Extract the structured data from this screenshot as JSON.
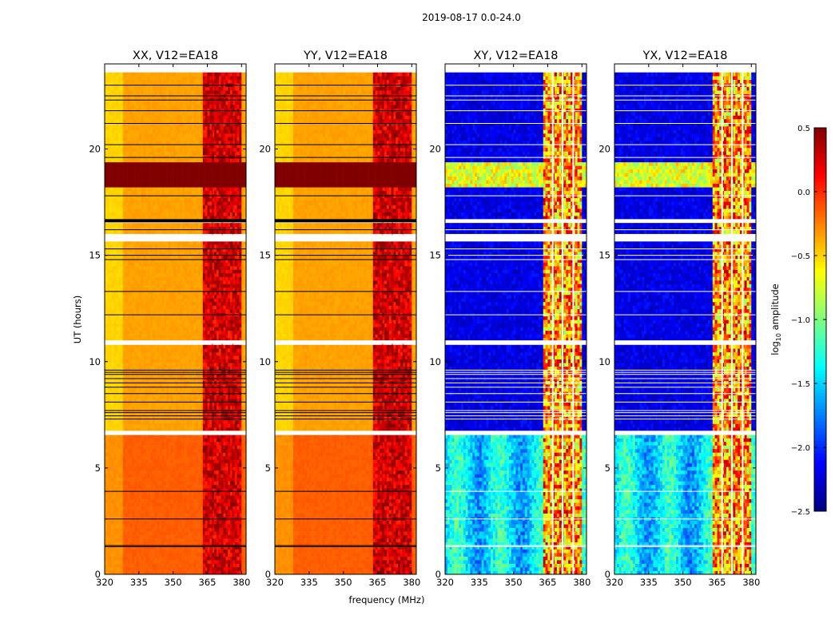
{
  "figure_title": "2019-08-17 0.0-24.0",
  "chart_data": {
    "type": "heatmap",
    "suptitle": "2019-08-17 0.0-24.0",
    "xlabel": "frequency (MHz)",
    "ylabel": "UT (hours)",
    "xlim": [
      320,
      382
    ],
    "ylim": [
      0,
      24
    ],
    "x_ticks": [
      320,
      335,
      350,
      365,
      380
    ],
    "y_ticks": [
      0,
      5,
      10,
      15,
      20
    ],
    "panels": [
      {
        "title": "XX, V12=EA18",
        "mode": "parallel"
      },
      {
        "title": "YY, V12=EA18",
        "mode": "parallel"
      },
      {
        "title": "XY, V12=EA18",
        "mode": "cross"
      },
      {
        "title": "YX, V12=EA18",
        "mode": "cross"
      }
    ],
    "colorbar": {
      "label": "log10 amplitude",
      "label_main": "log",
      "label_sub": "10",
      "label_rest": " amplitude",
      "range": [
        -2.5,
        0.5
      ],
      "ticks": [
        0.5,
        0.0,
        -0.5,
        -1.0,
        -1.5,
        -2.0,
        -2.5
      ],
      "tick_labels": [
        "0.5",
        "0.0",
        "−0.5",
        "−1.0",
        "−1.5",
        "−2.0",
        "−2.5"
      ],
      "colormap": "jet"
    },
    "rfi_band_mhz": [
      363.5,
      380
    ],
    "data_start_hours": 23.6,
    "parallel_levels": {
      "before_6.5h": -0.15,
      "after_6.5h": -0.35,
      "rfi": 0.25
    },
    "cross_levels": {
      "background": -2.2,
      "early_hours": -1.45,
      "rfi": -0.3
    },
    "saturated_intervals_hours": [
      [
        18.2,
        19.4
      ]
    ],
    "flagged_gaps_hours": [
      [
        6.55,
        6.75
      ],
      [
        10.85,
        11.0
      ],
      [
        15.65,
        15.95
      ],
      [
        16.55,
        16.7
      ]
    ],
    "flagged_rows_hours": [
      1.3,
      1.35,
      2.6,
      3.9,
      7.3,
      7.45,
      7.6,
      7.7,
      8.1,
      8.5,
      8.8,
      9.0,
      9.2,
      9.4,
      9.5,
      9.6,
      12.2,
      13.3,
      14.8,
      15.0,
      15.3,
      16.2,
      17.8,
      19.6,
      20.2,
      21.2,
      21.8,
      22.3,
      22.5,
      23.0
    ]
  }
}
